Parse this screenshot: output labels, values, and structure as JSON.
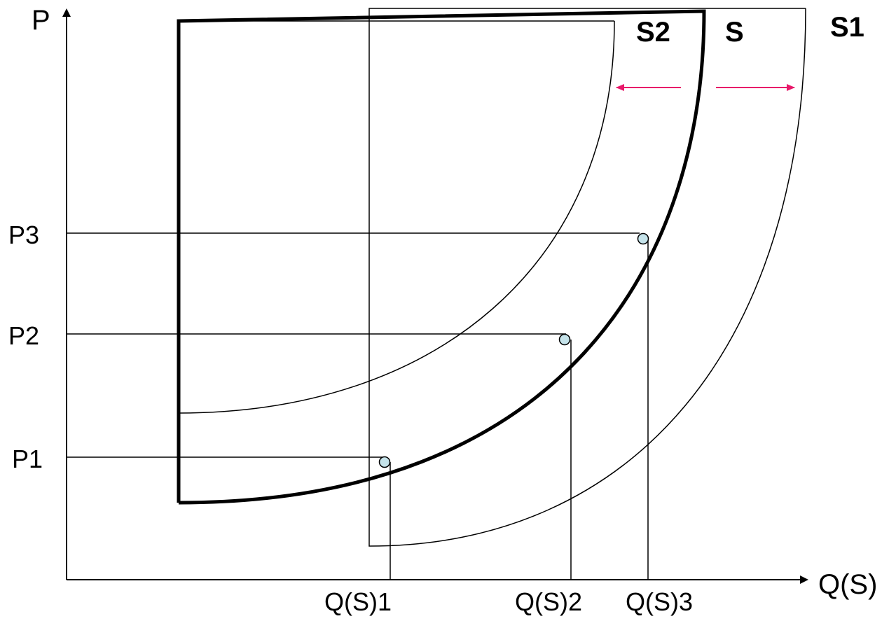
{
  "axes": {
    "y_label": "P",
    "x_label": "Q(S)"
  },
  "price_levels": [
    "P1",
    "P2",
    "P3"
  ],
  "quantity_levels": [
    "Q(S)1",
    "Q(S)2",
    "Q(S)3"
  ],
  "curves": {
    "original": "S",
    "increased": "S1",
    "decreased": "S2"
  },
  "colors": {
    "line": "#000000",
    "shift_arrow": "#e8186a",
    "point_fill": "#c5e3ea"
  }
}
